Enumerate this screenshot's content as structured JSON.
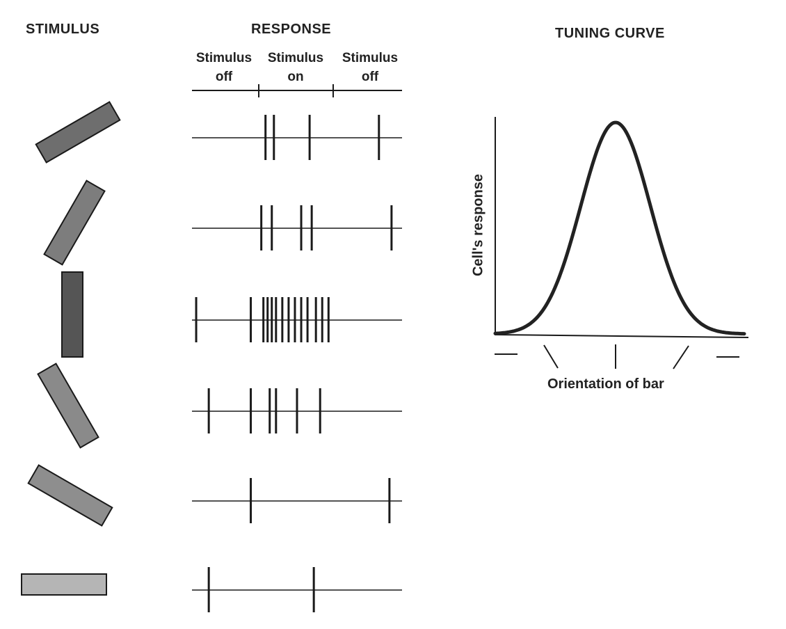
{
  "headings": {
    "stimulus": "STIMULUS",
    "response": "RESPONSE",
    "tuning_curve": "TUNING CURVE"
  },
  "phases": [
    {
      "line1": "Stimulus",
      "line2": "off"
    },
    {
      "line1": "Stimulus",
      "line2": "on"
    },
    {
      "line1": "Stimulus",
      "line2": "off"
    }
  ],
  "tuning": {
    "ylabel": "Cell's response",
    "xlabel": "Orientation of bar"
  },
  "trials": [
    {
      "orientation_deg": 30,
      "bar_shade": "#6e6e6e",
      "spikes": [
        0.35,
        0.39,
        0.56,
        0.89
      ]
    },
    {
      "orientation_deg": 60,
      "bar_shade": "#7d7d7d",
      "spikes": [
        0.33,
        0.38,
        0.52,
        0.57,
        0.95
      ]
    },
    {
      "orientation_deg": 90,
      "bar_shade": "#555555",
      "spikes": [
        0.02,
        0.28,
        0.34,
        0.36,
        0.38,
        0.4,
        0.43,
        0.46,
        0.49,
        0.52,
        0.55,
        0.59,
        0.62,
        0.65
      ]
    },
    {
      "orientation_deg": 120,
      "bar_shade": "#8a8a8a",
      "spikes": [
        0.08,
        0.28,
        0.37,
        0.4,
        0.5,
        0.61
      ]
    },
    {
      "orientation_deg": 150,
      "bar_shade": "#8e8e8e",
      "spikes": [
        0.28,
        0.94
      ]
    },
    {
      "orientation_deg": 180,
      "bar_shade": "#b5b5b5",
      "spikes": [
        0.08,
        0.58
      ]
    }
  ],
  "colors": {
    "ink": "#1a1a1a",
    "curve": "#222222"
  }
}
